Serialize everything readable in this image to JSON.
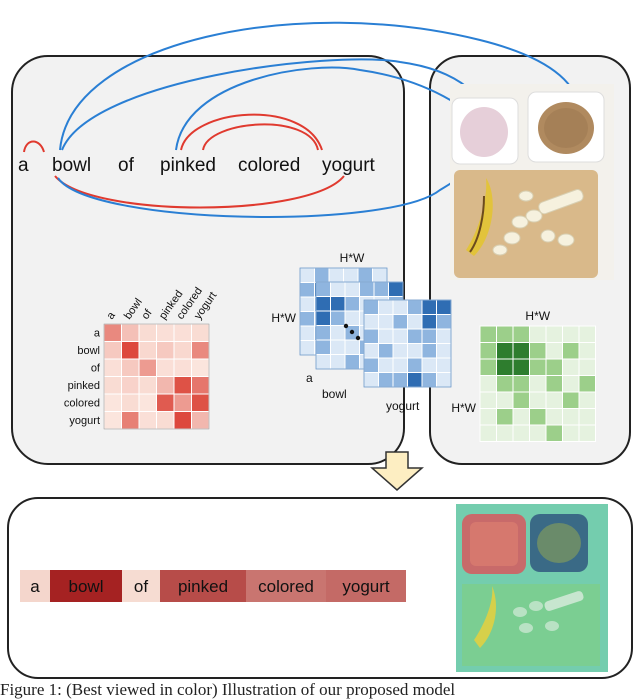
{
  "sentence": {
    "words": [
      "a",
      "bowl",
      "of",
      "pinked",
      "colored",
      "yogurt"
    ]
  },
  "text_attention_matrix": {
    "row_labels": [
      "a",
      "bowl",
      "of",
      "pinked",
      "colored",
      "yogurt"
    ],
    "col_labels": [
      "a",
      "bowl",
      "of",
      "pinked",
      "colored",
      "yogurt"
    ],
    "values": [
      [
        0.55,
        0.25,
        0.1,
        0.08,
        0.08,
        0.1
      ],
      [
        0.2,
        0.9,
        0.12,
        0.2,
        0.12,
        0.55
      ],
      [
        0.08,
        0.2,
        0.45,
        0.08,
        0.08,
        0.05
      ],
      [
        0.1,
        0.15,
        0.1,
        0.3,
        0.85,
        0.65
      ],
      [
        0.05,
        0.1,
        0.05,
        0.8,
        0.45,
        0.85
      ],
      [
        0.05,
        0.6,
        0.08,
        0.1,
        0.9,
        0.3
      ]
    ],
    "colors": {
      "low": "#fdeee6",
      "high": "#d9362a"
    }
  },
  "feature_maps": {
    "dim_label_top": "H*W",
    "dim_label_left": "H*W",
    "front_label": "a",
    "second_label": "bowl",
    "last_label": "yogurt",
    "dots": "...",
    "colors": {
      "light": "#dbe8f6",
      "mid": "#8fb5df",
      "dark": "#2f6db3"
    }
  },
  "image_attention_matrix": {
    "dim_label_top": "H*W",
    "dim_label_left": "H*W",
    "colors": {
      "light": "#e5f2df",
      "mid": "#9ccf8a",
      "dark": "#2e7d2e"
    }
  },
  "output_bar": {
    "tokens": [
      {
        "word": "a",
        "weight": 0.08
      },
      {
        "word": "bowl",
        "weight": 0.95
      },
      {
        "word": "of",
        "weight": 0.05
      },
      {
        "word": "pinked",
        "weight": 0.75
      },
      {
        "word": "colored",
        "weight": 0.55
      },
      {
        "word": "yogurt",
        "weight": 0.6
      }
    ],
    "colors": {
      "low": "#fbe6dc",
      "high": "#a01818"
    }
  },
  "arc_colors": {
    "text": "#e03a2f",
    "cross": "#2a7fd4",
    "image": "#2d9a2d"
  },
  "caption": "Figure 1: (Best viewed in color) Illustration of our proposed model"
}
